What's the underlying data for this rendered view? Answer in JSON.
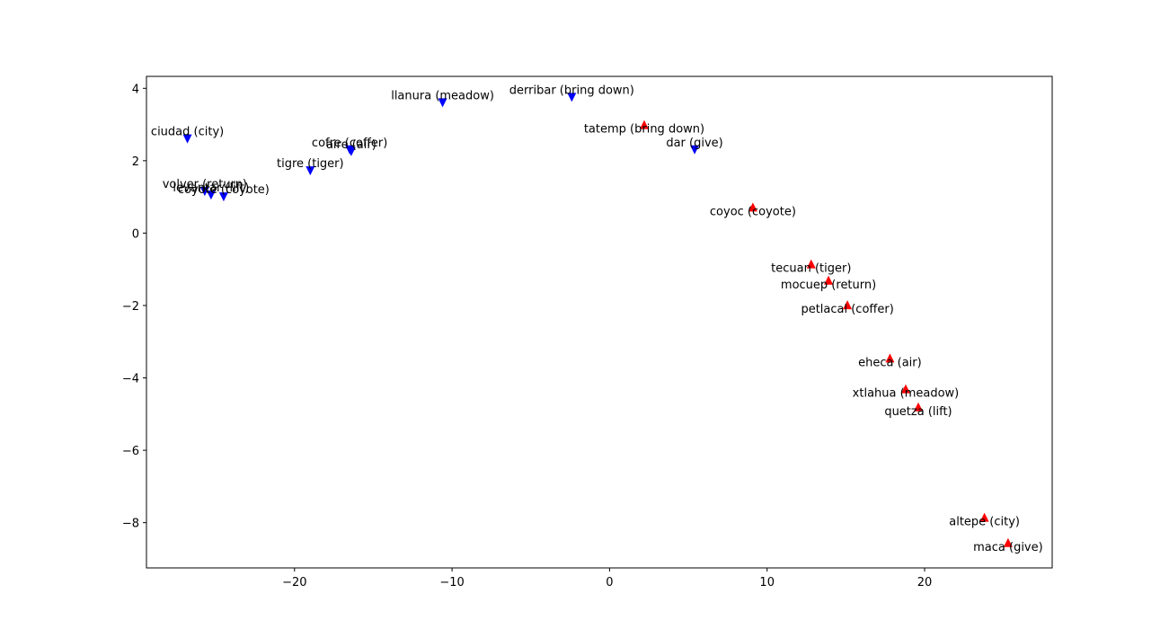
{
  "chart_data": {
    "type": "scatter",
    "title": "",
    "xlabel": "",
    "ylabel": "",
    "xlim": [
      -29.4,
      28.1
    ],
    "ylim": [
      -9.25,
      4.33
    ],
    "xticks": [
      -20,
      -10,
      0,
      10,
      20
    ],
    "xtick_labels": [
      "−20",
      "−10",
      "0",
      "10",
      "20"
    ],
    "yticks": [
      4,
      2,
      0,
      -2,
      -4,
      -6,
      -8
    ],
    "ytick_labels": [
      "4",
      "2",
      "0",
      "−2",
      "−4",
      "−6",
      "−8"
    ],
    "grid": false,
    "series": [
      {
        "marker": "triangle-down",
        "color": "#0000ff",
        "points": [
          {
            "label": "ciudad (city)",
            "x": -26.8,
            "y": 2.6
          },
          {
            "label": "llanura (meadow)",
            "x": -10.6,
            "y": 3.6
          },
          {
            "label": "derribar (bring down)",
            "x": -2.4,
            "y": 3.75
          },
          {
            "label": "dar (give)",
            "x": 5.4,
            "y": 2.3
          },
          {
            "label": "cofre (coffer)",
            "x": -16.5,
            "y": 2.3
          },
          {
            "label": "aire (air)",
            "x": -16.4,
            "y": 2.25
          },
          {
            "label": "tigre (tiger)",
            "x": -19.0,
            "y": 1.72
          },
          {
            "label": "volver (return)",
            "x": -25.7,
            "y": 1.15
          },
          {
            "label": "levantar (lift)",
            "x": -25.3,
            "y": 1.05
          },
          {
            "label": "coyote (coyote)",
            "x": -24.5,
            "y": 1.0
          }
        ]
      },
      {
        "marker": "triangle-up",
        "color": "#ff0000",
        "points": [
          {
            "label": "tatemp (bring down)",
            "x": 2.2,
            "y": 3.0
          },
          {
            "label": "coyoc (coyote)",
            "x": 9.1,
            "y": 0.72
          },
          {
            "label": "tecuan (tiger)",
            "x": 12.8,
            "y": -0.85
          },
          {
            "label": "mocuep (return)",
            "x": 13.9,
            "y": -1.3
          },
          {
            "label": "petlacal (coffer)",
            "x": 15.1,
            "y": -1.98
          },
          {
            "label": "eheca (air)",
            "x": 17.8,
            "y": -3.45
          },
          {
            "label": "xtlahua (meadow)",
            "x": 18.8,
            "y": -4.3
          },
          {
            "label": "quetza (lift)",
            "x": 19.6,
            "y": -4.8
          },
          {
            "label": "altepe (city)",
            "x": 23.8,
            "y": -7.85
          },
          {
            "label": "maca (give)",
            "x": 25.3,
            "y": -8.55
          }
        ]
      }
    ]
  }
}
